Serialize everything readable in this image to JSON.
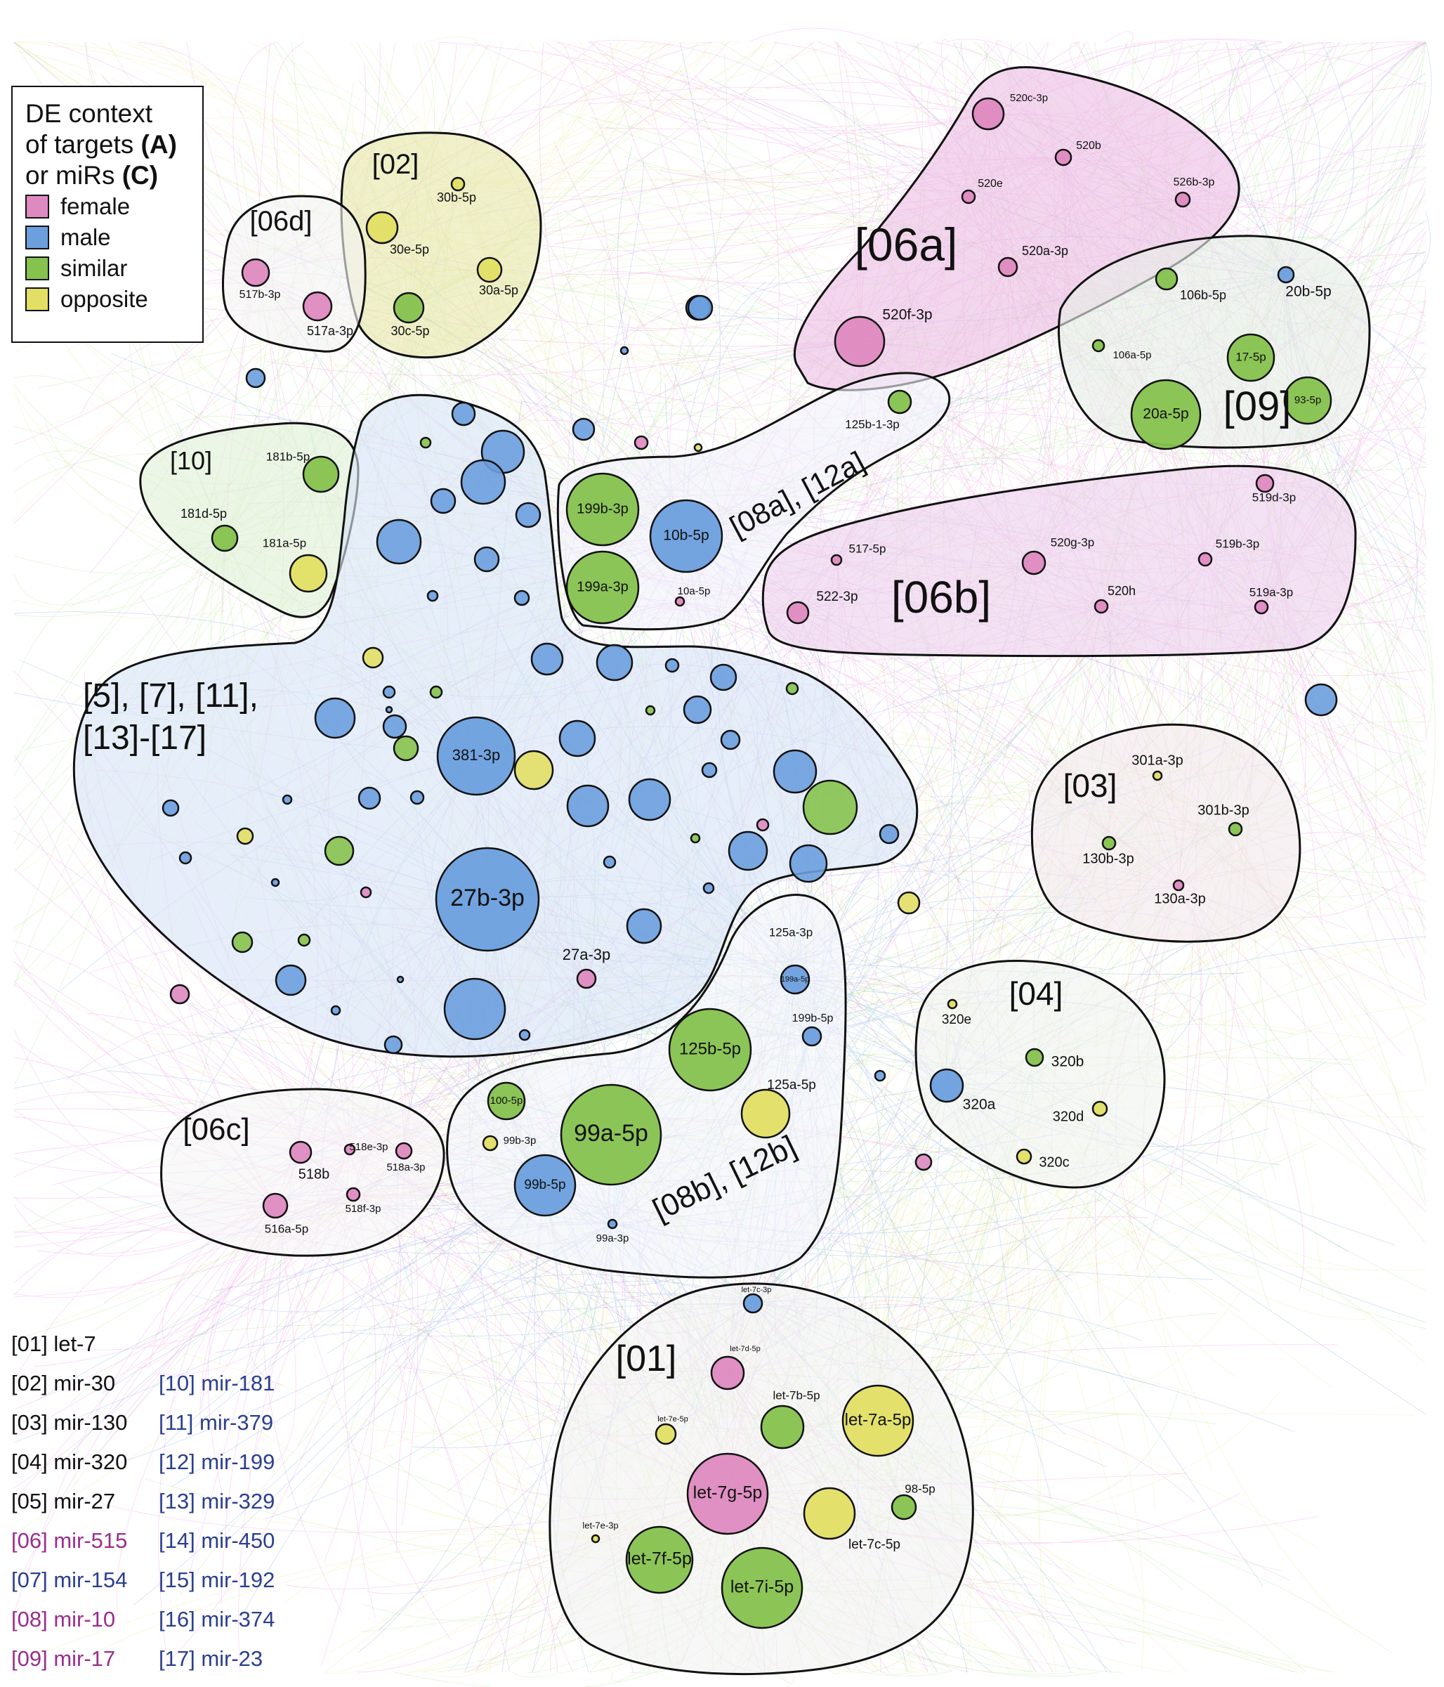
{
  "colors": {
    "female": "#de8ac0",
    "male": "#6c9fde",
    "similar": "#86c24e",
    "opposite": "#e2df64",
    "edge_male": "#3f7be0",
    "edge_female": "#e64ad4",
    "edge_similar": "#7ad24a",
    "edge_opposite": "#e0d850",
    "family_black": "#111111",
    "family_magenta": "#9b2d8c",
    "family_blue": "#2b3f8f"
  },
  "legend": {
    "title_line1": "DE context",
    "title_line2_pre": "of targets ",
    "title_line2_key": "(A)",
    "title_line3_pre": "or miRs ",
    "title_line3_key": "(C)",
    "items": [
      {
        "label": "female",
        "category": "female"
      },
      {
        "label": "male",
        "category": "male"
      },
      {
        "label": "similar",
        "category": "similar"
      },
      {
        "label": "opposite",
        "category": "opposite"
      }
    ]
  },
  "groups": [
    {
      "id": "g02",
      "label": "[02]"
    },
    {
      "id": "g06d",
      "label": "[06d]"
    },
    {
      "id": "g06a",
      "label": "[06a]"
    },
    {
      "id": "g09",
      "label": "[09]"
    },
    {
      "id": "g10",
      "label": "[10]"
    },
    {
      "id": "gmain",
      "label_line1": "[5], [7], [11],",
      "label_line2": "[13]-[17]"
    },
    {
      "id": "g08a",
      "label": "[08a], [12a]"
    },
    {
      "id": "g06b",
      "label": "[06b]"
    },
    {
      "id": "g03",
      "label": "[03]"
    },
    {
      "id": "g04",
      "label": "[04]"
    },
    {
      "id": "g06c",
      "label": "[06c]"
    },
    {
      "id": "g08b",
      "label": "[08b], [12b]"
    },
    {
      "id": "g01",
      "label": "[01]"
    }
  ],
  "nodes": [
    {
      "label": "30b-5p",
      "category": "opposite"
    },
    {
      "label": "30e-5p",
      "category": "opposite"
    },
    {
      "label": "30a-5p",
      "category": "opposite"
    },
    {
      "label": "30c-5p",
      "category": "similar"
    },
    {
      "label": "517b-3p",
      "category": "female"
    },
    {
      "label": "517a-3p",
      "category": "female"
    },
    {
      "label": "520c-3p",
      "category": "female"
    },
    {
      "label": "520b",
      "category": "female"
    },
    {
      "label": "520e",
      "category": "female"
    },
    {
      "label": "526b-3p",
      "category": "female"
    },
    {
      "label": "520a-3p",
      "category": "female"
    },
    {
      "label": "520f-3p",
      "category": "female"
    },
    {
      "label": "106b-5p",
      "category": "similar"
    },
    {
      "label": "20b-5p",
      "category": "male"
    },
    {
      "label": "106a-5p",
      "category": "similar"
    },
    {
      "label": "17-5p",
      "category": "similar"
    },
    {
      "label": "20a-5p",
      "category": "similar"
    },
    {
      "label": "93-5p",
      "category": "similar"
    },
    {
      "label": "125b-1-3p",
      "category": "similar"
    },
    {
      "label": "199b-3p",
      "category": "similar"
    },
    {
      "label": "10b-5p",
      "category": "male"
    },
    {
      "label": "199a-3p",
      "category": "similar"
    },
    {
      "label": "10a-5p",
      "category": "female"
    },
    {
      "label": "181b-5p",
      "category": "similar"
    },
    {
      "label": "181d-5p",
      "category": "similar"
    },
    {
      "label": "181a-5p",
      "category": "opposite"
    },
    {
      "label": "519d-3p",
      "category": "female"
    },
    {
      "label": "517-5p",
      "category": "female"
    },
    {
      "label": "520g-3p",
      "category": "female"
    },
    {
      "label": "519b-3p",
      "category": "female"
    },
    {
      "label": "522-3p",
      "category": "female"
    },
    {
      "label": "520h",
      "category": "female"
    },
    {
      "label": "519a-3p",
      "category": "female"
    },
    {
      "label": "381-3p",
      "category": "male"
    },
    {
      "label": "27b-3p",
      "category": "male"
    },
    {
      "label": "27a-3p",
      "category": "female"
    },
    {
      "label": "301a-3p",
      "category": "opposite"
    },
    {
      "label": "301b-3p",
      "category": "similar"
    },
    {
      "label": "130b-3p",
      "category": "similar"
    },
    {
      "label": "130a-3p",
      "category": "female"
    },
    {
      "label": "125a-3p",
      "category": "male"
    },
    {
      "label": "199a-5p",
      "category": "male"
    },
    {
      "label": "199b-5p",
      "category": "male"
    },
    {
      "label": "125b-5p",
      "category": "similar"
    },
    {
      "label": "125a-5p",
      "category": "opposite"
    },
    {
      "label": "100-5p",
      "category": "similar"
    },
    {
      "label": "99a-5p",
      "category": "similar"
    },
    {
      "label": "99b-3p",
      "category": "opposite"
    },
    {
      "label": "99b-5p",
      "category": "male"
    },
    {
      "label": "99a-3p",
      "category": "male"
    },
    {
      "label": "320e",
      "category": "opposite"
    },
    {
      "label": "320b",
      "category": "similar"
    },
    {
      "label": "320a",
      "category": "male"
    },
    {
      "label": "320d",
      "category": "opposite"
    },
    {
      "label": "320c",
      "category": "opposite"
    },
    {
      "label": "518e-3p",
      "category": "female"
    },
    {
      "label": "518b",
      "category": "female"
    },
    {
      "label": "518a-3p",
      "category": "female"
    },
    {
      "label": "518f-3p",
      "category": "female"
    },
    {
      "label": "516a-5p",
      "category": "female"
    },
    {
      "label": "let-7c-3p",
      "category": "male"
    },
    {
      "label": "let-7d-5p",
      "category": "female"
    },
    {
      "label": "let-7b-5p",
      "category": "similar"
    },
    {
      "label": "let-7a-5p",
      "category": "opposite"
    },
    {
      "label": "let-7e-5p",
      "category": "opposite"
    },
    {
      "label": "let-7g-5p",
      "category": "female"
    },
    {
      "label": "98-5p",
      "category": "similar"
    },
    {
      "label": "let-7c-5p",
      "category": "opposite"
    },
    {
      "label": "let-7e-3p",
      "category": "opposite"
    },
    {
      "label": "let-7f-5p",
      "category": "similar"
    },
    {
      "label": "let-7i-5p",
      "category": "similar"
    }
  ],
  "families": [
    {
      "text": "[01] let-7",
      "color": "family_black"
    },
    {
      "text": "[02] mir-30",
      "color": "family_black"
    },
    {
      "text": "[03] mir-130",
      "color": "family_black"
    },
    {
      "text": "[04] mir-320",
      "color": "family_black"
    },
    {
      "text": "[05] mir-27",
      "color": "family_black"
    },
    {
      "text": "[06] mir-515",
      "color": "family_magenta"
    },
    {
      "text": "[07] mir-154",
      "color": "family_blue"
    },
    {
      "text": "[08] mir-10",
      "color": "family_magenta"
    },
    {
      "text": "[09] mir-17",
      "color": "family_magenta"
    },
    {
      "text": "[10] mir-181",
      "color": "family_blue"
    },
    {
      "text": "[11] mir-379",
      "color": "family_blue"
    },
    {
      "text": "[12] mir-199",
      "color": "family_blue"
    },
    {
      "text": "[13] mir-329",
      "color": "family_blue"
    },
    {
      "text": "[14] mir-450",
      "color": "family_blue"
    },
    {
      "text": "[15] mir-192",
      "color": "family_blue"
    },
    {
      "text": "[16] mir-374",
      "color": "family_blue"
    },
    {
      "text": "[17] mir-23",
      "color": "family_blue"
    }
  ]
}
